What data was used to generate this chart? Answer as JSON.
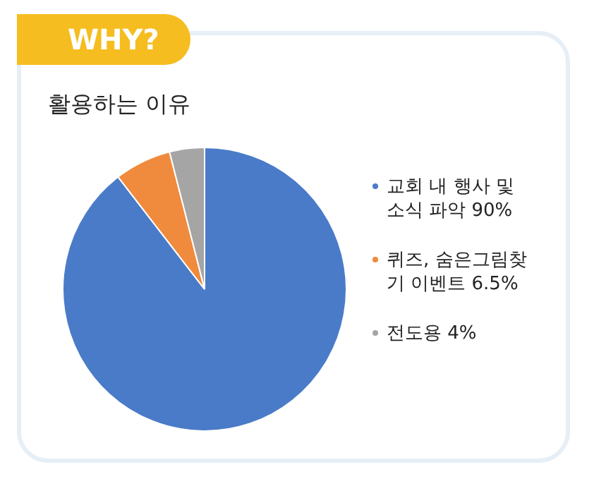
{
  "chart_data": {
    "type": "pie",
    "title": "WHY?",
    "subtitle": "활용하는 이유",
    "categories": [
      "교회 내 행사 및 소식 파악",
      "퀴즈, 숨은그림찾기 이벤트",
      "전도용"
    ],
    "values": [
      90,
      6.5,
      4
    ],
    "value_labels": [
      "90%",
      "6.5%",
      "4%"
    ],
    "colors": [
      "#4a7bc8",
      "#f08a3c",
      "#a5a5a5"
    ],
    "legend": "right"
  }
}
